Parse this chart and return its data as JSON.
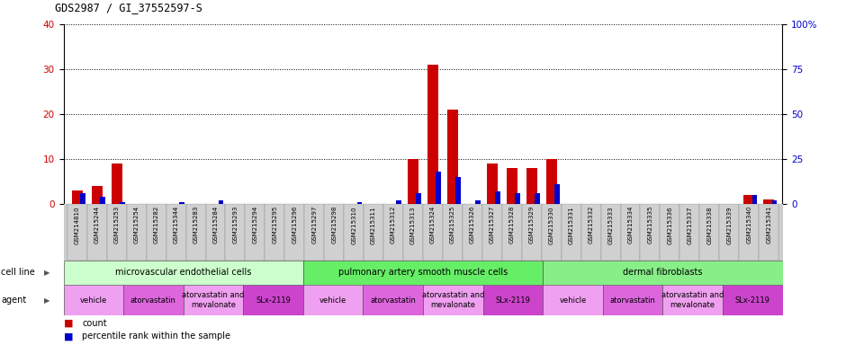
{
  "title": "GDS2987 / GI_37552597-S",
  "samples": [
    "GSM214810",
    "GSM215244",
    "GSM215253",
    "GSM215254",
    "GSM215282",
    "GSM215344",
    "GSM215283",
    "GSM215284",
    "GSM215293",
    "GSM215294",
    "GSM215295",
    "GSM215296",
    "GSM215297",
    "GSM215298",
    "GSM215310",
    "GSM215311",
    "GSM215312",
    "GSM215313",
    "GSM215324",
    "GSM215325",
    "GSM215326",
    "GSM215327",
    "GSM215328",
    "GSM215329",
    "GSM215330",
    "GSM215331",
    "GSM215332",
    "GSM215333",
    "GSM215334",
    "GSM215335",
    "GSM215336",
    "GSM215337",
    "GSM215338",
    "GSM215339",
    "GSM215340",
    "GSM215341"
  ],
  "count": [
    3,
    4,
    9,
    0,
    0,
    0,
    0,
    0,
    0,
    0,
    0,
    0,
    0,
    0,
    0,
    0,
    0,
    10,
    31,
    21,
    0,
    9,
    8,
    8,
    10,
    0,
    0,
    0,
    0,
    0,
    0,
    0,
    0,
    0,
    2,
    1
  ],
  "percentile": [
    6,
    4,
    1,
    0,
    0,
    1,
    0,
    2,
    0,
    0,
    0,
    0,
    0,
    0,
    1,
    0,
    2,
    6,
    18,
    15,
    2,
    7,
    6,
    6,
    11,
    0,
    0,
    0,
    0,
    0,
    0,
    0,
    0,
    0,
    5,
    2
  ],
  "cell_line_groups": [
    {
      "label": "microvascular endothelial cells",
      "start": 0,
      "end": 12,
      "color": "#ccffcc"
    },
    {
      "label": "pulmonary artery smooth muscle cells",
      "start": 12,
      "end": 24,
      "color": "#66ee66"
    },
    {
      "label": "dermal fibroblasts",
      "start": 24,
      "end": 36,
      "color": "#88ee88"
    }
  ],
  "agent_groups": [
    {
      "label": "vehicle",
      "start": 0,
      "end": 3,
      "color": "#f0a0f0"
    },
    {
      "label": "atorvastatin",
      "start": 3,
      "end": 6,
      "color": "#dd66dd"
    },
    {
      "label": "atorvastatin and\nmevalonate",
      "start": 6,
      "end": 9,
      "color": "#f0a0f0"
    },
    {
      "label": "SLx-2119",
      "start": 9,
      "end": 12,
      "color": "#cc44cc"
    },
    {
      "label": "vehicle",
      "start": 12,
      "end": 15,
      "color": "#f0a0f0"
    },
    {
      "label": "atorvastatin",
      "start": 15,
      "end": 18,
      "color": "#dd66dd"
    },
    {
      "label": "atorvastatin and\nmevalonate",
      "start": 18,
      "end": 21,
      "color": "#f0a0f0"
    },
    {
      "label": "SLx-2119",
      "start": 21,
      "end": 24,
      "color": "#cc44cc"
    },
    {
      "label": "vehicle",
      "start": 24,
      "end": 27,
      "color": "#f0a0f0"
    },
    {
      "label": "atorvastatin",
      "start": 27,
      "end": 30,
      "color": "#dd66dd"
    },
    {
      "label": "atorvastatin and\nmevalonate",
      "start": 30,
      "end": 33,
      "color": "#f0a0f0"
    },
    {
      "label": "SLx-2119",
      "start": 33,
      "end": 36,
      "color": "#cc44cc"
    }
  ],
  "ylim_left": [
    0,
    40
  ],
  "ylim_right": [
    0,
    100
  ],
  "yticks_left": [
    0,
    10,
    20,
    30,
    40
  ],
  "yticks_right": [
    0,
    25,
    50,
    75,
    100
  ],
  "count_color": "#cc0000",
  "percentile_color": "#0000cc",
  "xtick_bg": "#d0d0d0"
}
